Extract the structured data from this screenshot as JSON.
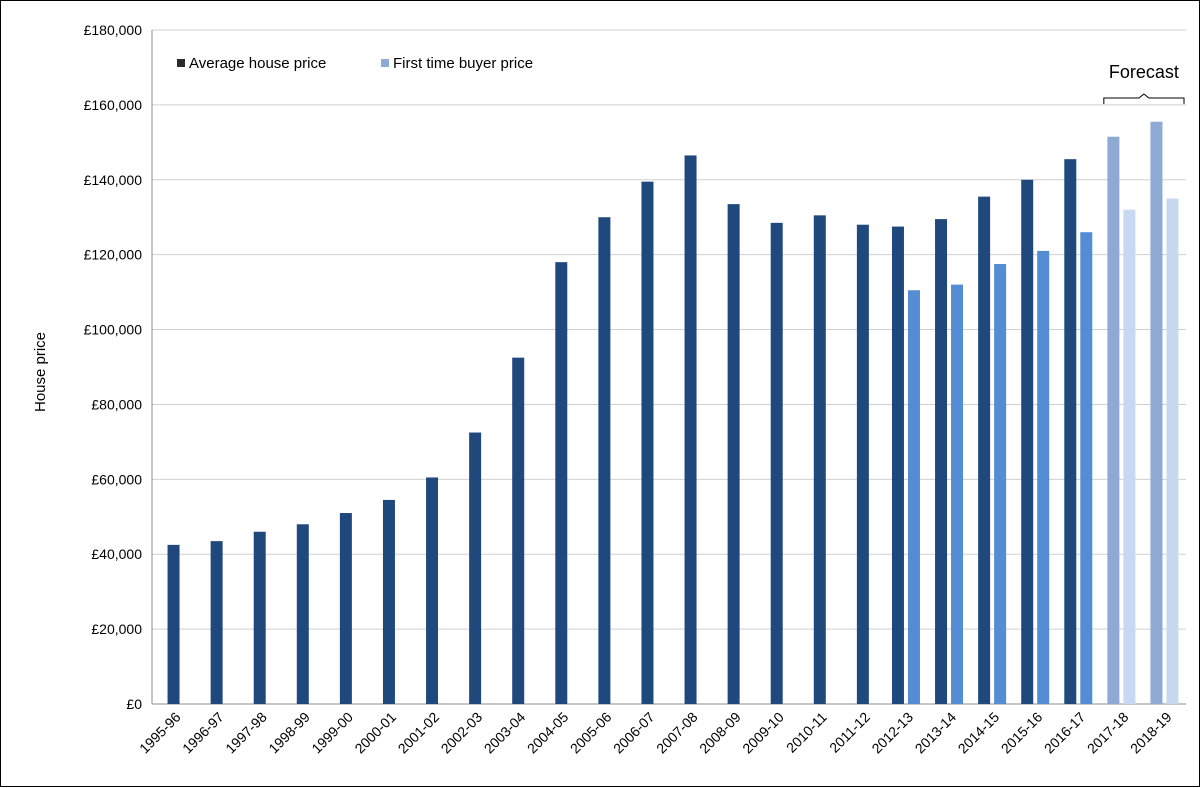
{
  "chart_data": {
    "type": "bar",
    "title": "",
    "xlabel": "",
    "ylabel": "House price",
    "ylim": [
      0,
      180000
    ],
    "ytick_step": 20000,
    "ytick_labels": [
      "£0",
      "£20,000",
      "£40,000",
      "£60,000",
      "£80,000",
      "£100,000",
      "£120,000",
      "£140,000",
      "£160,000",
      "£180,000"
    ],
    "grid": true,
    "legend_position": "top-left",
    "categories": [
      "1995-96",
      "1996-97",
      "1997-98",
      "1998-99",
      "1999-00",
      "2000-01",
      "2001-02",
      "2002-03",
      "2003-04",
      "2004-05",
      "2005-06",
      "2006-07",
      "2007-08",
      "2008-09",
      "2009-10",
      "2010-11",
      "2011-12",
      "2012-13",
      "2013-14",
      "2014-15",
      "2015-16",
      "2016-17",
      "2017-18",
      "2018-19"
    ],
    "series": [
      {
        "name": "Average house price",
        "color": "#1f497d",
        "forecast_color": "#8ea9d3",
        "values": [
          42500,
          43500,
          46000,
          48000,
          51000,
          54500,
          60500,
          72500,
          92500,
          118000,
          130000,
          139500,
          146500,
          133500,
          128500,
          130500,
          128000,
          127500,
          129500,
          135500,
          140000,
          145500,
          151500,
          155500
        ]
      },
      {
        "name": "First time buyer price",
        "color": "#548dd4",
        "forecast_color": "#c6d9f1",
        "values": [
          null,
          null,
          null,
          null,
          null,
          null,
          null,
          null,
          null,
          null,
          null,
          null,
          null,
          null,
          null,
          null,
          null,
          110500,
          112000,
          117500,
          121000,
          126000,
          132000,
          135000
        ]
      }
    ],
    "annotation": {
      "text": "Forecast",
      "categories": [
        "2017-18",
        "2018-19"
      ]
    }
  }
}
